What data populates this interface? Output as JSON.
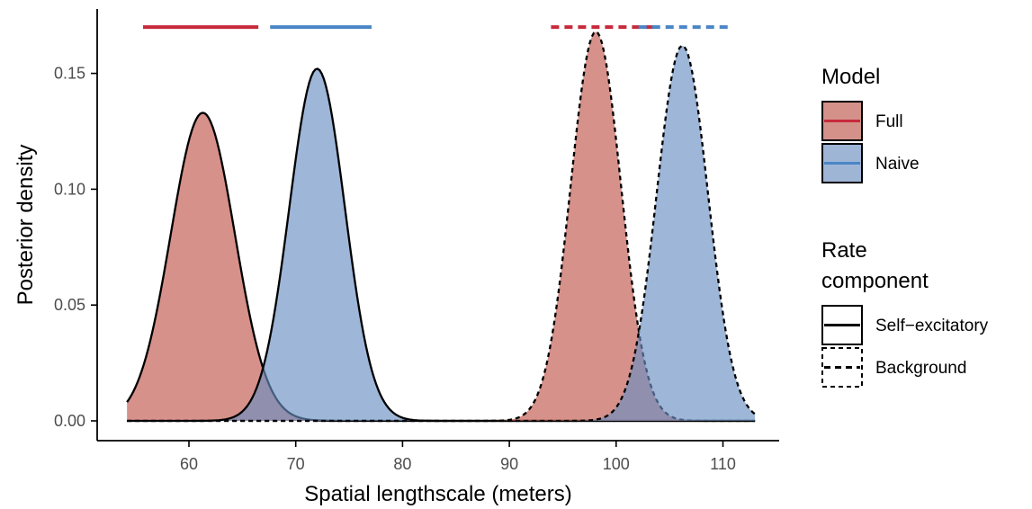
{
  "chart_data": {
    "type": "area",
    "xlabel": "Spatial lengthscale (meters)",
    "ylabel": "Posterior density",
    "xlim": [
      54.2,
      113
    ],
    "ylim": [
      0,
      0.175
    ],
    "x_ticks": [
      60,
      70,
      80,
      90,
      100,
      110
    ],
    "y_ticks": [
      0.0,
      0.05,
      0.1,
      0.15
    ],
    "x_tick_labels": [
      "60",
      "70",
      "80",
      "90",
      "100",
      "110"
    ],
    "y_tick_labels": [
      "0.00",
      "0.05",
      "0.10",
      "0.15"
    ],
    "grid": false,
    "series": [
      {
        "model": "Full",
        "component": "Self-excitatory",
        "mean": 61.3,
        "sd": 3.0,
        "peak": 0.133,
        "x_range": [
          54.2,
          113
        ],
        "interval": [
          55.7,
          66.5
        ]
      },
      {
        "model": "Naive",
        "component": "Self-excitatory",
        "mean": 72.0,
        "sd": 2.6,
        "peak": 0.152,
        "x_range": [
          54.2,
          113
        ],
        "interval": [
          67.6,
          77.1
        ]
      },
      {
        "model": "Full",
        "component": "Background",
        "mean": 98.1,
        "sd": 2.35,
        "peak": 0.168,
        "x_range": [
          54.2,
          113
        ],
        "interval": [
          93.9,
          103.5
        ]
      },
      {
        "model": "Naive",
        "component": "Background",
        "mean": 106.2,
        "sd": 2.4,
        "peak": 0.162,
        "x_range": [
          54.2,
          113
        ],
        "interval": [
          102.1,
          110.8
        ]
      }
    ],
    "interval_bar_y": 0.17,
    "colors": {
      "Full": "#c72a3c",
      "Naive": "#4a86c6",
      "fill_Full": "#c0564c",
      "fill_Naive": "#6a8fc2",
      "fill_opacity": 0.65
    },
    "legend_placement": "right"
  },
  "legend": {
    "model_title": "Model",
    "model_items": [
      {
        "label": "Full",
        "fill": "#d39189",
        "line": "#c72a3c"
      },
      {
        "label": "Naive",
        "fill": "#9fb5d6",
        "line": "#4a86c6"
      }
    ],
    "rate_title_line1": "Rate",
    "rate_title_line2": "component",
    "rate_items": [
      {
        "label": "Self−excitatory",
        "dash": "solid"
      },
      {
        "label": "Background",
        "dash": "dashed"
      }
    ]
  }
}
